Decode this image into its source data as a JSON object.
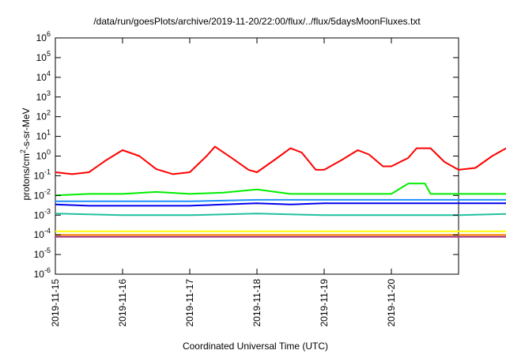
{
  "chart_data": {
    "type": "line",
    "title": "/data/run/goesPlots/archive/2019-11-20/22:00/flux/../flux/5daysMoonFluxes.txt",
    "xlabel": "Coordinated Universal Time (UTC)",
    "ylabel": {
      "prefix": "protons/cm",
      "superscript": "2",
      "suffix": "-s-sr-MeV"
    },
    "y_scale": "log",
    "ylim": [
      1e-06,
      1000000.0
    ],
    "y_ticks": [
      {
        "value": 1e-06,
        "base": "10",
        "exp": "-6"
      },
      {
        "value": 1e-05,
        "base": "10",
        "exp": "-5"
      },
      {
        "value": 0.0001,
        "base": "10",
        "exp": "-4"
      },
      {
        "value": 0.001,
        "base": "10",
        "exp": "-3"
      },
      {
        "value": 0.01,
        "base": "10",
        "exp": "-2"
      },
      {
        "value": 0.1,
        "base": "10",
        "exp": "-1"
      },
      {
        "value": 1.0,
        "base": "10",
        "exp": "0"
      },
      {
        "value": 10.0,
        "base": "10",
        "exp": "1"
      },
      {
        "value": 100.0,
        "base": "10",
        "exp": "2"
      },
      {
        "value": 1000.0,
        "base": "10",
        "exp": "3"
      },
      {
        "value": 10000.0,
        "base": "10",
        "exp": "4"
      },
      {
        "value": 100000.0,
        "base": "10",
        "exp": "5"
      },
      {
        "value": 1000000.0,
        "base": "10",
        "exp": "6"
      }
    ],
    "xlim": [
      "2019-11-15",
      "2019-11-21"
    ],
    "x_ticks": [
      "2019-11-15",
      "2019-11-16",
      "2019-11-17",
      "2019-11-18",
      "2019-11-19",
      "2019-11-20"
    ],
    "grid": false,
    "legend": "none",
    "series": [
      {
        "color": "#ff0000",
        "values": [
          [
            "2019-11-15",
            0.15
          ],
          [
            "2019-11-15T06",
            0.12
          ],
          [
            "2019-11-15T12",
            0.15
          ],
          [
            "2019-11-15T18",
            0.6
          ],
          [
            "2019-11-16",
            2.0
          ],
          [
            "2019-11-16T06",
            1.0
          ],
          [
            "2019-11-16T12",
            0.22
          ],
          [
            "2019-11-16T18",
            0.12
          ],
          [
            "2019-11-17",
            0.15
          ],
          [
            "2019-11-17T06",
            1.0
          ],
          [
            "2019-11-17T09",
            3.0
          ],
          [
            "2019-11-17T15",
            0.8
          ],
          [
            "2019-11-17T21",
            0.2
          ],
          [
            "2019-11-18",
            0.15
          ],
          [
            "2019-11-18T06",
            0.6
          ],
          [
            "2019-11-18T12",
            2.5
          ],
          [
            "2019-11-18T16",
            1.5
          ],
          [
            "2019-11-18T21",
            0.2
          ],
          [
            "2019-11-19",
            0.2
          ],
          [
            "2019-11-19T06",
            0.6
          ],
          [
            "2019-11-19T12",
            2.0
          ],
          [
            "2019-11-19T16",
            1.2
          ],
          [
            "2019-11-19T21",
            0.3
          ],
          [
            "2019-11-20",
            0.3
          ],
          [
            "2019-11-20T06",
            0.8
          ],
          [
            "2019-11-20T09",
            2.5
          ],
          [
            "2019-11-20T14",
            2.5
          ],
          [
            "2019-11-20T19",
            0.5
          ],
          [
            "2019-11-21",
            0.2
          ],
          [
            "2019-11-21T06",
            0.25
          ],
          [
            "2019-11-21T12",
            1.0
          ],
          [
            "2019-11-21T18",
            3.0
          ],
          [
            "2019-11-21T22",
            1.0
          ]
        ]
      },
      {
        "color": "#00ee00",
        "values": [
          [
            "2019-11-15",
            0.01
          ],
          [
            "2019-11-15T12",
            0.012
          ],
          [
            "2019-11-16",
            0.012
          ],
          [
            "2019-11-16T12",
            0.015
          ],
          [
            "2019-11-17",
            0.012
          ],
          [
            "2019-11-17T12",
            0.014
          ],
          [
            "2019-11-18",
            0.02
          ],
          [
            "2019-11-18T12",
            0.012
          ],
          [
            "2019-11-19",
            0.012
          ],
          [
            "2019-11-19T12",
            0.012
          ],
          [
            "2019-11-20",
            0.012
          ],
          [
            "2019-11-20T06",
            0.04
          ],
          [
            "2019-11-20T12",
            0.04
          ],
          [
            "2019-11-20T14",
            0.012
          ],
          [
            "2019-11-21",
            0.012
          ],
          [
            "2019-11-21T22",
            0.012
          ]
        ]
      },
      {
        "color": "#0000ee",
        "values": [
          [
            "2019-11-15",
            0.0035
          ],
          [
            "2019-11-15T12",
            0.003
          ],
          [
            "2019-11-16",
            0.003
          ],
          [
            "2019-11-16T12",
            0.003
          ],
          [
            "2019-11-17",
            0.003
          ],
          [
            "2019-11-17T12",
            0.0035
          ],
          [
            "2019-11-18",
            0.004
          ],
          [
            "2019-11-18T12",
            0.0035
          ],
          [
            "2019-11-19",
            0.004
          ],
          [
            "2019-11-19T12",
            0.004
          ],
          [
            "2019-11-20",
            0.004
          ],
          [
            "2019-11-20T12",
            0.004
          ],
          [
            "2019-11-21",
            0.004
          ],
          [
            "2019-11-21T22",
            0.004
          ]
        ]
      },
      {
        "color": "#1e90ff",
        "values": [
          [
            "2019-11-15",
            0.005
          ],
          [
            "2019-11-16",
            0.005
          ],
          [
            "2019-11-17",
            0.005
          ],
          [
            "2019-11-18",
            0.006
          ],
          [
            "2019-11-19",
            0.006
          ],
          [
            "2019-11-20",
            0.006
          ],
          [
            "2019-11-21",
            0.006
          ],
          [
            "2019-11-21T22",
            0.006
          ]
        ]
      },
      {
        "color": "#20c0a0",
        "values": [
          [
            "2019-11-15",
            0.0012
          ],
          [
            "2019-11-16",
            0.001
          ],
          [
            "2019-11-17",
            0.001
          ],
          [
            "2019-11-18",
            0.0012
          ],
          [
            "2019-11-19",
            0.001
          ],
          [
            "2019-11-20",
            0.001
          ],
          [
            "2019-11-21",
            0.001
          ],
          [
            "2019-11-21T22",
            0.0012
          ]
        ]
      },
      {
        "color": "#ffff00",
        "values": [
          [
            "2019-11-15",
            0.00015
          ],
          [
            "2019-11-16",
            0.00015
          ],
          [
            "2019-11-17",
            0.00015
          ],
          [
            "2019-11-18",
            0.00015
          ],
          [
            "2019-11-19",
            0.00015
          ],
          [
            "2019-11-20",
            0.00015
          ],
          [
            "2019-11-21",
            0.00015
          ],
          [
            "2019-11-21T22",
            0.00015
          ]
        ]
      },
      {
        "color": "#ff8c00",
        "values": [
          [
            "2019-11-15",
            0.0001
          ],
          [
            "2019-11-16",
            0.0001
          ],
          [
            "2019-11-17",
            0.0001
          ],
          [
            "2019-11-18",
            0.0001
          ],
          [
            "2019-11-19",
            0.0001
          ],
          [
            "2019-11-20",
            0.0001
          ],
          [
            "2019-11-21",
            0.0001
          ],
          [
            "2019-11-21T22",
            0.0001
          ]
        ]
      },
      {
        "color": "#a0307a",
        "values": [
          [
            "2019-11-15",
            8e-05
          ],
          [
            "2019-11-16",
            8e-05
          ],
          [
            "2019-11-17",
            8e-05
          ],
          [
            "2019-11-18",
            8e-05
          ],
          [
            "2019-11-19",
            8e-05
          ],
          [
            "2019-11-20",
            8e-05
          ],
          [
            "2019-11-21",
            8e-05
          ],
          [
            "2019-11-21T22",
            8e-05
          ]
        ]
      }
    ]
  }
}
